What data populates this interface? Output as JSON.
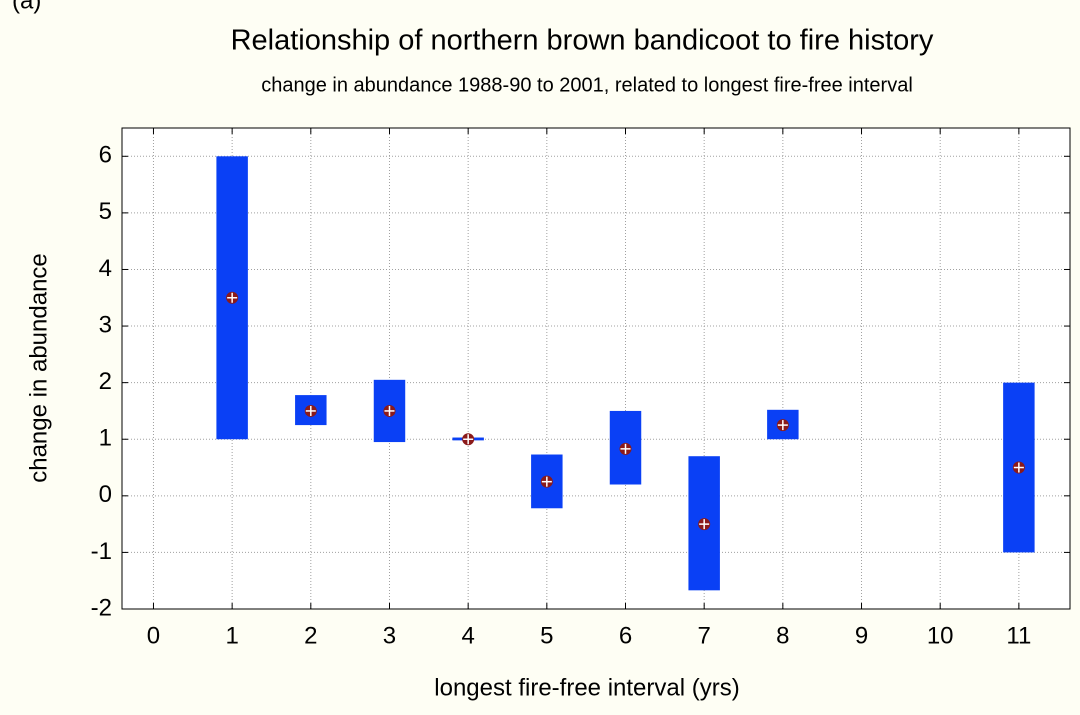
{
  "chart_data": {
    "type": "range",
    "panel_label": "(a)",
    "title": "Relationship of northern brown bandicoot to fire history",
    "subtitle": "change in abundance 1988-90 to 2001, related to longest fire-free interval",
    "x_label": "longest fire-free interval (yrs)",
    "y_label": "change in abundance",
    "x": [
      1,
      2,
      3,
      4,
      5,
      6,
      7,
      8,
      11
    ],
    "low": [
      1,
      1.25,
      0.95,
      0.98,
      -0.22,
      0.2,
      -1.67,
      1.0,
      -1
    ],
    "high": [
      6,
      1.78,
      2.05,
      1.03,
      0.73,
      1.5,
      0.7,
      1.52,
      2
    ],
    "mean": [
      3.5,
      1.5,
      1.5,
      1.0,
      0.25,
      0.83,
      -0.5,
      1.25,
      0.5
    ],
    "color": "#0a40f5",
    "marker_color": "#8b1a1a",
    "xlim": [
      -0.4,
      11.65
    ],
    "ylim": [
      -2,
      6.5
    ],
    "xticks": [
      0,
      1,
      2,
      3,
      4,
      5,
      6,
      7,
      8,
      9,
      10,
      11
    ],
    "yticks": [
      -2,
      -1,
      0,
      1,
      2,
      3,
      4,
      5,
      6
    ],
    "grid": true
  }
}
